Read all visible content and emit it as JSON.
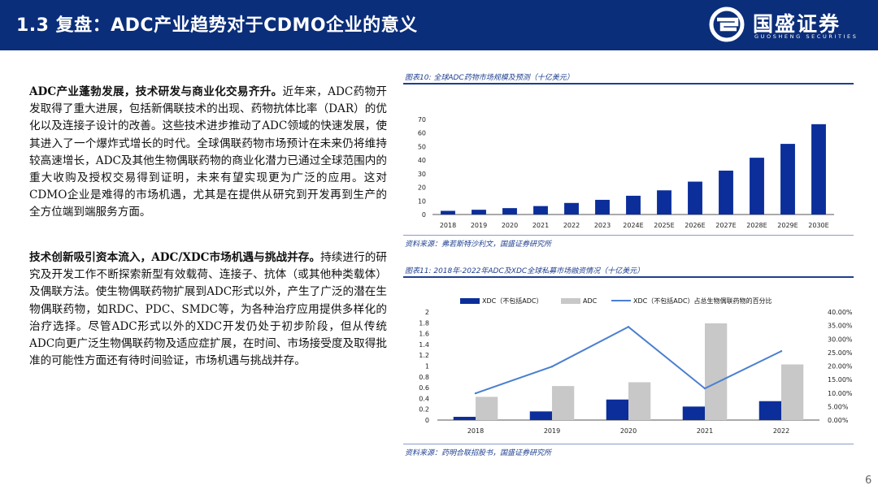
{
  "header": {
    "title": "1.3 复盘：ADC产业趋势对于CDMO企业的意义",
    "logo_name": "国盛证券",
    "logo_sub": "GUOSHENG SECURITIES"
  },
  "paragraph1": {
    "lead": "ADC产业蓬勃发展，技术研发与商业化交易齐升。",
    "body": "近年来，ADC药物开发取得了重大进展，包括新偶联技术的出现、药物抗体比率（DAR）的优化以及连接子设计的改善。这些技术进步推动了ADC领域的快速发展，使其进入了一个爆炸式增长的时代。全球偶联药物市场预计在未来仍将维持较高速增长，ADC及其他生物偶联药物的商业化潜力已通过全球范围内的重大收购及授权交易得到证明，未来有望实现更为广泛的应用。这对CDMO企业是难得的市场机遇，尤其是在提供从研究到开发再到生产的全方位端到端服务方面。"
  },
  "paragraph2": {
    "lead": "技术创新吸引资本流入，ADC/XDC市场机遇与挑战并存。",
    "body": "持续进行的研究及开发工作不断探索新型有效载荷、连接子、抗体（或其他种类载体）及偶联方法。使生物偶联药物扩展到ADC形式以外，产生了广泛的潜在生物偶联药物，如RDC、PDC、SMDC等，为各种治疗应用提供多样化的治疗选择。尽管ADC形式以外的XDC开发仍处于初步阶段，但从传统ADC向更广泛生物偶联药物及适应症扩展，在时间、市场接受度及取得批准的可能性方面还有待时间验证，市场机遇与挑战并存。"
  },
  "figure10": {
    "caption": "图表10: 全球ADC药物市场规模及预测（十亿美元）",
    "source": "资料来源：弗若斯特沙利文，国盛证券研究所"
  },
  "figure11": {
    "caption": "图表11: 2018年-2022年ADC及XDC全球私募市场融资情况（十亿美元）",
    "source": "资料来源：药明合联招股书，国盛证券研究所",
    "legend": {
      "xdc": "XDC（不包括ADC）",
      "adc": "ADC",
      "pct": "XDC（不包括ADC）占总生物偶联药物的百分比"
    }
  },
  "page_number": "6",
  "colors": {
    "header_bg": "#0b2e7a",
    "bar_blue": "#0b2e9a",
    "bar_gray": "#c8c8c8",
    "line_blue": "#4a7fd0",
    "caption": "#1f3f8f"
  },
  "chart_data": [
    {
      "type": "bar",
      "categories": [
        "2018",
        "2019",
        "2020",
        "2021",
        "2022",
        "2023",
        "2024E",
        "2025E",
        "2026E",
        "2027E",
        "2028E",
        "2029E",
        "2030E"
      ],
      "values": [
        2.7,
        3.5,
        4.7,
        6.2,
        8.5,
        10.8,
        13.8,
        17.8,
        24.2,
        32.3,
        41.8,
        52.0,
        66.5
      ],
      "ylim": [
        0,
        70
      ],
      "yticks": [
        0,
        10,
        20,
        30,
        40,
        50,
        60,
        70
      ],
      "grid": false,
      "legend": "none"
    },
    {
      "type": "bar",
      "categories": [
        "2018",
        "2019",
        "2020",
        "2021",
        "2022"
      ],
      "series": [
        {
          "name": "XDC（不包括ADC）",
          "values": [
            0.06,
            0.16,
            0.38,
            0.25,
            0.35
          ]
        },
        {
          "name": "ADC",
          "values": [
            0.43,
            0.63,
            0.7,
            1.79,
            1.03
          ]
        },
        {
          "name": "XDC（不包括ADC）占总生物偶联药物的百分比",
          "type": "line",
          "axis": "right",
          "values": [
            0.099,
            0.198,
            0.345,
            0.117,
            0.255
          ]
        }
      ],
      "ylim": [
        0,
        2
      ],
      "yticks": [
        0,
        0.2,
        0.4,
        0.6,
        0.8,
        1,
        1.2,
        1.4,
        1.6,
        1.8,
        2
      ],
      "y2lim": [
        0,
        0.4
      ],
      "y2ticks": [
        "0.00%",
        "5.00%",
        "10.00%",
        "15.00%",
        "20.00%",
        "25.00%",
        "30.00%",
        "35.00%",
        "40.00%"
      ],
      "grid": false,
      "legend": "top"
    }
  ]
}
